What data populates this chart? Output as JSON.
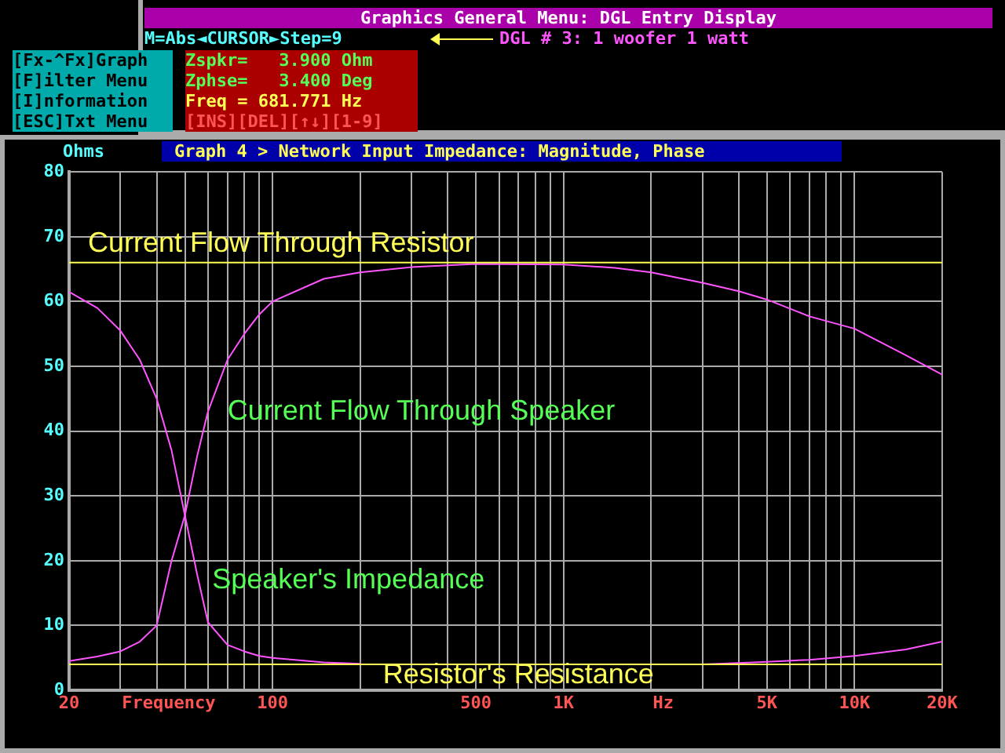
{
  "chart_data": {
    "type": "line",
    "title": "Graph 4 > Network Input Impedance: Magnitude, Phase",
    "ylabel": "Ohms",
    "xlabel": "Frequency",
    "log": "x",
    "grid": true,
    "legend": false,
    "marker": "none",
    "line_style": "solid",
    "xlim": [
      20,
      20000
    ],
    "xticks": [
      20,
      {
        "value": 30,
        "label": null
      },
      {
        "value": 40,
        "label": null
      },
      {
        "value": 50,
        "label": null
      },
      {
        "value": 60,
        "label": null
      },
      {
        "value": 70,
        "label": null
      },
      {
        "value": 80,
        "label": null
      },
      {
        "value": 90,
        "label": null
      },
      100,
      {
        "value": 200,
        "label": null
      },
      {
        "value": 300,
        "label": null
      },
      {
        "value": 400,
        "label": null
      },
      500,
      {
        "value": 600,
        "label": null
      },
      {
        "value": 700,
        "label": null
      },
      {
        "value": 800,
        "label": null
      },
      {
        "value": 900,
        "label": null
      },
      {
        "value": 1000,
        "label": "1K"
      },
      {
        "value": 2000,
        "label": null
      },
      {
        "value": 3000,
        "label": null
      },
      {
        "value": 4000,
        "label": null
      },
      {
        "value": 5000,
        "label": "5K"
      },
      {
        "value": 6000,
        "label": null
      },
      {
        "value": 7000,
        "label": null
      },
      {
        "value": 8000,
        "label": null
      },
      {
        "value": 9000,
        "label": null
      },
      {
        "value": 10000,
        "label": "10K"
      },
      {
        "value": 20000,
        "label": "20K"
      }
    ],
    "ylim": [
      0,
      80
    ],
    "yticks": [
      0,
      10,
      20,
      30,
      40,
      50,
      60,
      70,
      80
    ],
    "x": [
      20,
      25,
      30,
      35,
      40,
      45,
      50,
      55,
      60,
      70,
      80,
      90,
      100,
      150,
      200,
      300,
      500,
      1000,
      1500,
      2000,
      3000,
      4000,
      5000,
      7000,
      10000,
      15000,
      20000
    ],
    "series": [
      {
        "color": "#ff55ff",
        "values": [
          4.5,
          5.2,
          6,
          7.5,
          10,
          20,
          27,
          36,
          43,
          51,
          55,
          58,
          60,
          63.5,
          64.5,
          65.3,
          65.8,
          65.7,
          65.2,
          64.5,
          62.9,
          61.6,
          60.3,
          57.7,
          55.8,
          51.7,
          48.7
        ]
      },
      {
        "color": "#ff55ff",
        "values": [
          61.5,
          59,
          55.5,
          51,
          45,
          37,
          27,
          18,
          10.5,
          7,
          6,
          5.3,
          5,
          4.3,
          4.1,
          null,
          null,
          null,
          null,
          null,
          4,
          4.2,
          4.4,
          4.7,
          5.3,
          6.3,
          7.5
        ]
      }
    ],
    "ref_lines": [
      {
        "axis": "y",
        "value": 66,
        "label": "Current Flow Through Resistor",
        "color": "#ffff55"
      },
      {
        "axis": "y",
        "value": 4,
        "label": "Resistor's Resistance",
        "color": "#ffff55"
      }
    ],
    "annotations": [
      "Current Flow Through Speaker",
      "Speaker's Impedance",
      "Hz",
      "Graphics General Menu: DGL Entry Display",
      "M=Abs◄CURSOR►Step=9",
      "DGL # 3: 1 woofer 1 watt",
      "[Fx-^Fx]Graph",
      "[F]ilter Menu",
      "[I]nformation",
      "[ESC]Txt Menu",
      "Zspkr=   3.900 Ohm",
      "Zphse=   3.400 Deg",
      "Freq = 681.771 Hz",
      "[INS][DEL][↑↓][1-9]"
    ]
  }
}
